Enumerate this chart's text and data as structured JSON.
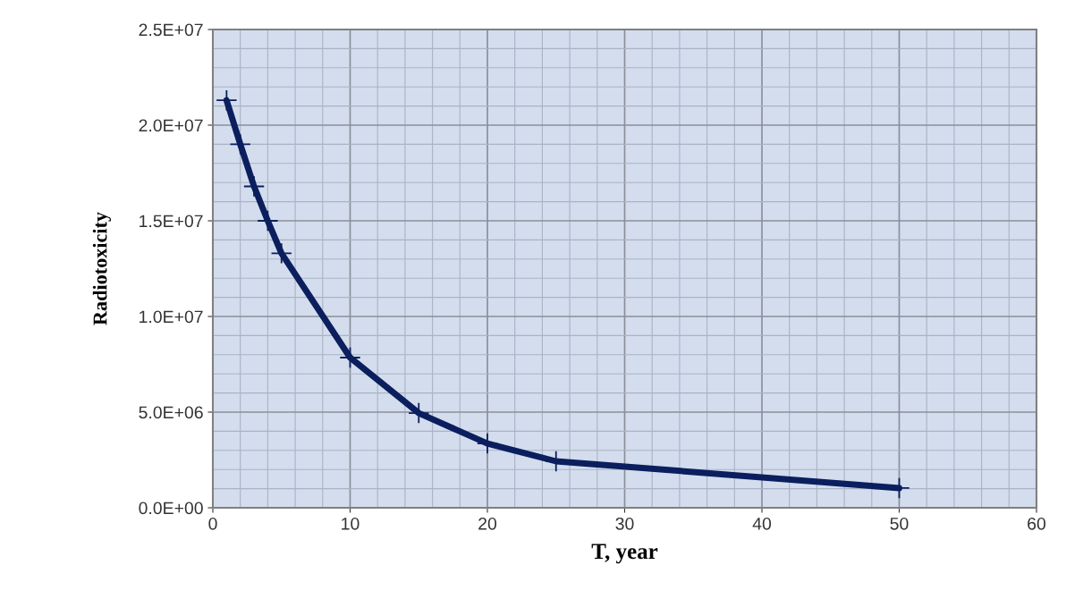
{
  "chart_data": {
    "type": "line",
    "xlabel": "T, year",
    "ylabel": "Radiotoxicity",
    "x": [
      1,
      2,
      3,
      4,
      5,
      10,
      15,
      20,
      25,
      50
    ],
    "series": [
      {
        "color": "#0b1f5e",
        "values": [
          21300000,
          19000000,
          16800000,
          15000000,
          13300000,
          7850000,
          4950000,
          3360000,
          2430000,
          1030000
        ]
      }
    ],
    "xlim": [
      0,
      60
    ],
    "xticks": [
      0,
      10,
      20,
      30,
      40,
      50,
      60
    ],
    "ylim": [
      0,
      25000000
    ],
    "yticks": [
      {
        "value": 0,
        "label": "0.0E+00"
      },
      {
        "value": 5000000,
        "label": "5.0E+06"
      },
      {
        "value": 10000000,
        "label": "1.0E+07"
      },
      {
        "value": 15000000,
        "label": "1.5E+07"
      },
      {
        "value": 20000000,
        "label": "2.0E+07"
      },
      {
        "value": 25000000,
        "label": "2.5E+07"
      }
    ],
    "grid": true,
    "marker": "cross",
    "line_style": "solid"
  }
}
